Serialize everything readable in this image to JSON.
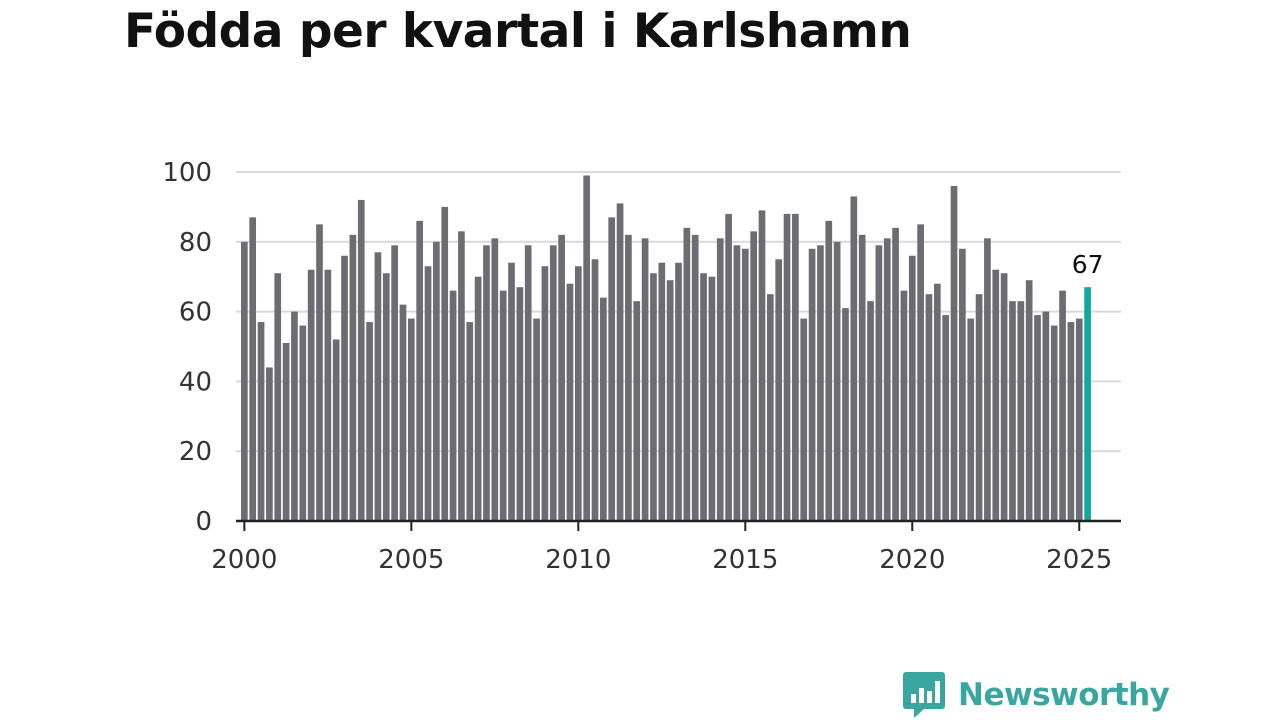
{
  "title": "Födda per kvartal i Karlshamn",
  "brand": {
    "name": "Newsworthy",
    "icon": "newsworthy-logo-icon",
    "color": "#3aa6a0"
  },
  "colors": {
    "bar": "#6d6c72",
    "highlight": "#13a89e",
    "grid": "#d9d9d9",
    "axis": "#222222"
  },
  "chart_data": {
    "type": "bar",
    "title": "Födda per kvartal i Karlshamn",
    "xlabel": "",
    "ylabel": "",
    "ylim": [
      0,
      100
    ],
    "yticks": [
      0,
      20,
      40,
      60,
      80,
      100
    ],
    "xlim": [
      1999.75,
      2026.25
    ],
    "xticks": [
      2000,
      2005,
      2010,
      2015,
      2020,
      2025
    ],
    "xtick_labels": [
      "2000",
      "2005",
      "2010",
      "2015",
      "2020",
      "2025"
    ],
    "grid": true,
    "start": "2000 Q1",
    "frequency": "quarterly",
    "values": [
      80,
      87,
      57,
      44,
      71,
      51,
      60,
      56,
      72,
      85,
      72,
      52,
      76,
      82,
      92,
      57,
      77,
      71,
      79,
      62,
      58,
      86,
      73,
      80,
      90,
      66,
      83,
      57,
      70,
      79,
      81,
      66,
      74,
      67,
      79,
      58,
      73,
      79,
      82,
      68,
      73,
      99,
      75,
      64,
      87,
      91,
      82,
      63,
      81,
      71,
      74,
      69,
      74,
      84,
      82,
      71,
      70,
      81,
      88,
      79,
      78,
      83,
      89,
      65,
      75,
      88,
      88,
      58,
      78,
      79,
      86,
      80,
      61,
      93,
      82,
      63,
      79,
      81,
      84,
      66,
      76,
      85,
      65,
      68,
      59,
      96,
      78,
      58,
      65,
      81,
      72,
      71,
      63,
      63,
      69,
      59,
      60,
      56,
      66,
      57,
      58,
      67
    ],
    "highlight": {
      "label": "67",
      "value": 67
    }
  }
}
